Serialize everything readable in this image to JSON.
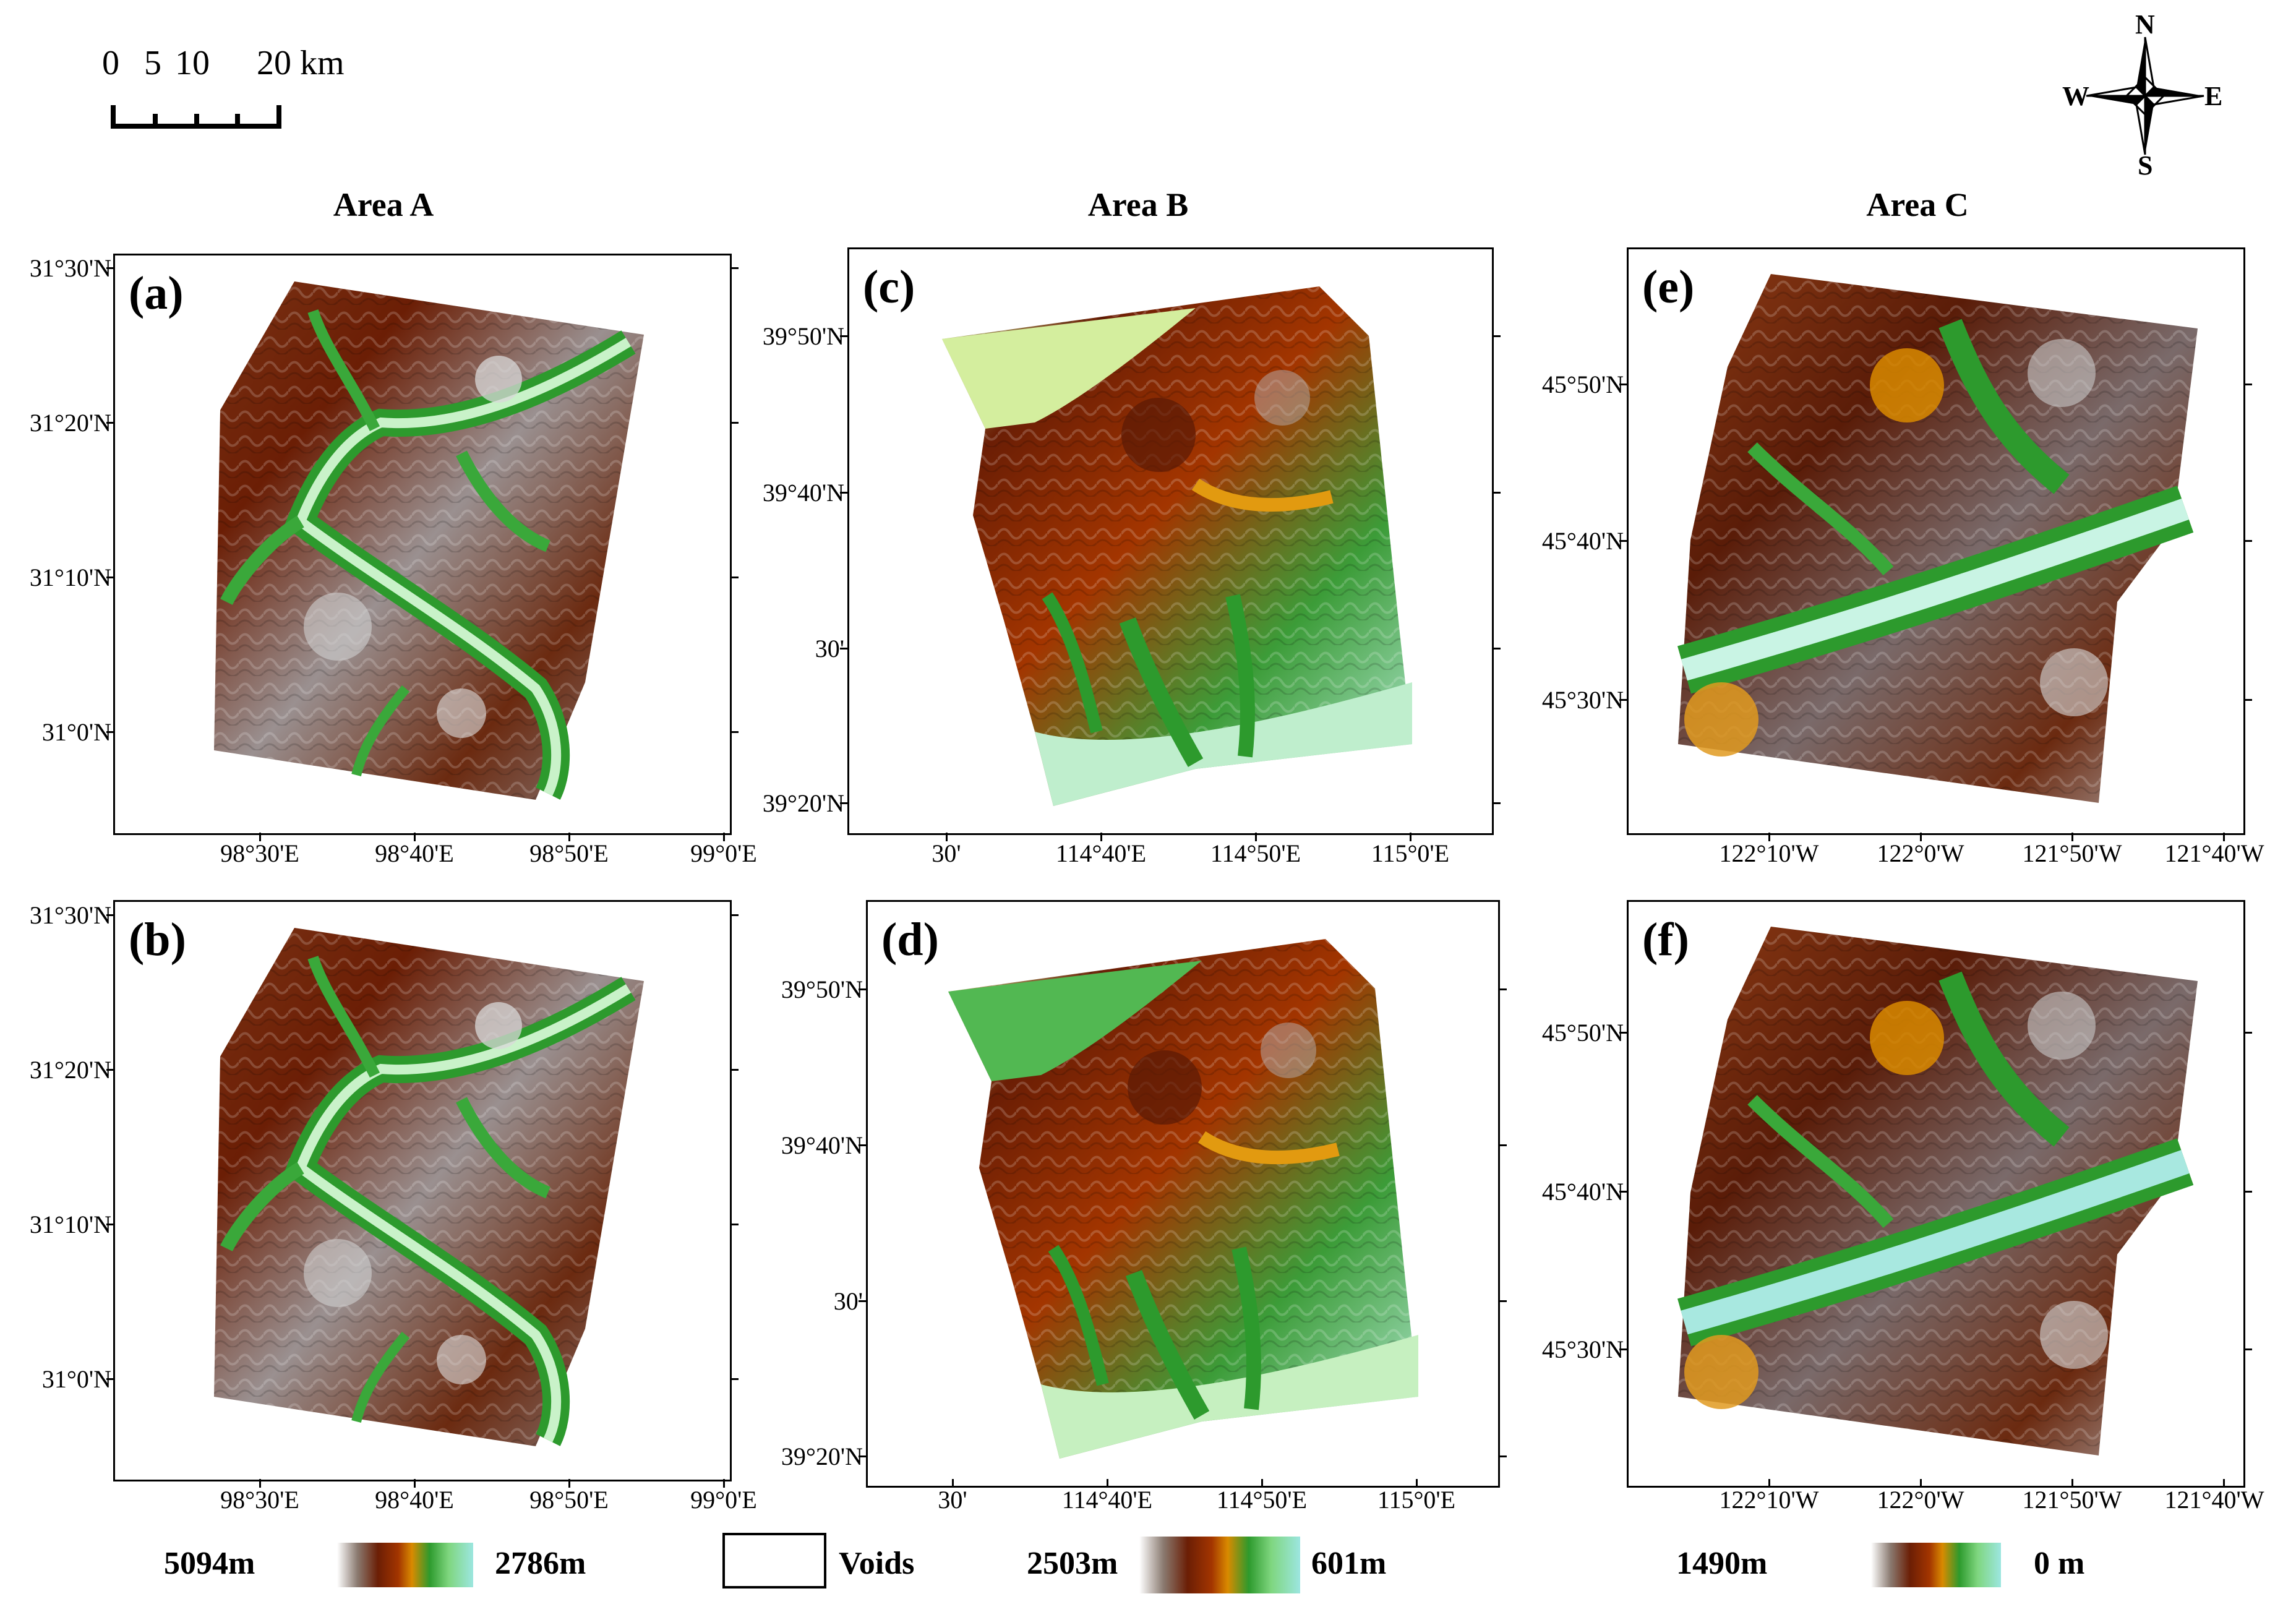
{
  "scalebar": {
    "labels": [
      "0",
      "5",
      "10",
      "20 km"
    ]
  },
  "north_arrow": {
    "n": "N",
    "s": "S",
    "e": "E",
    "w": "W"
  },
  "areas": [
    {
      "title": "Area A"
    },
    {
      "title": "Area B"
    },
    {
      "title": "Area C"
    }
  ],
  "panels": {
    "a": {
      "label": "(a)",
      "y_ticks": [
        "31°30'N",
        "31°20'N",
        "31°10'N",
        "31°0'N"
      ],
      "x_ticks": [
        "98°30'E",
        "98°40'E",
        "98°50'E",
        "99°0'E"
      ]
    },
    "b": {
      "label": "(b)",
      "y_ticks": [
        "31°30'N",
        "31°20'N",
        "31°10'N",
        "31°0'N"
      ],
      "x_ticks": [
        "98°30'E",
        "98°40'E",
        "98°50'E",
        "99°0'E"
      ]
    },
    "c": {
      "label": "(c)",
      "y_ticks": [
        "39°50'N",
        "39°40'N",
        "30'",
        "39°20'N"
      ],
      "x_ticks": [
        "30'",
        "114°40'E",
        "114°50'E",
        "115°0'E"
      ]
    },
    "d": {
      "label": "(d)",
      "y_ticks": [
        "39°50'N",
        "39°40'N",
        "30'",
        "39°20'N"
      ],
      "x_ticks": [
        "30'",
        "114°40'E",
        "114°50'E",
        "115°0'E"
      ]
    },
    "e": {
      "label": "(e)",
      "y_ticks": [
        "45°50'N",
        "45°40'N",
        "45°30'N"
      ],
      "x_ticks": [
        "122°10'W",
        "122°0'W",
        "121°50'W",
        "121°40'W"
      ]
    },
    "f": {
      "label": "(f)",
      "y_ticks": [
        "45°50'N",
        "45°40'N",
        "45°30'N"
      ],
      "x_ticks": [
        "122°10'W",
        "122°0'W",
        "121°50'W",
        "121°40'W"
      ]
    }
  },
  "legend": {
    "area_a": {
      "max": "5094m",
      "min": "2786m"
    },
    "voids": "Voids",
    "area_b": {
      "max": "2503m",
      "min": "601m"
    },
    "area_c": {
      "max": "1490m",
      "min": "0 m"
    }
  },
  "colors": {
    "dem_ramp": [
      "#ffffff",
      "#b5b5b5",
      "#7a4a36",
      "#6b1e05",
      "#a33500",
      "#d98a00",
      "#2d9a2d",
      "#46b446",
      "#c9f2c9",
      "#9ce6e0"
    ],
    "border": "#000000"
  }
}
